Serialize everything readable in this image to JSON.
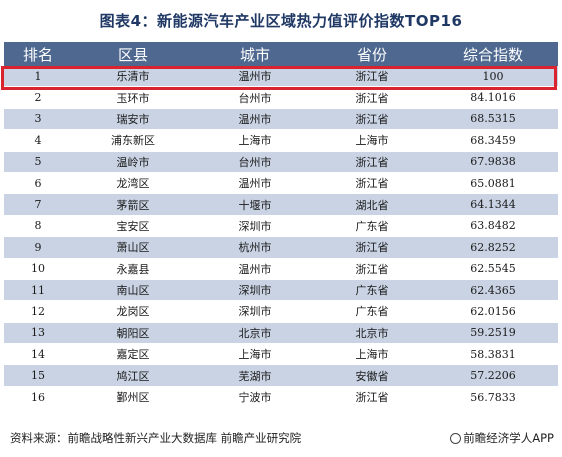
{
  "title": "图表4：新能源汽车产业区域热力值评价指数TOP16",
  "columns": [
    "排名",
    "区县",
    "城市",
    "省份",
    "综合指数"
  ],
  "rows": [
    [
      "1",
      "乐清市",
      "温州市",
      "浙江省",
      "100"
    ],
    [
      "2",
      "玉环市",
      "台州市",
      "浙江省",
      "84.1016"
    ],
    [
      "3",
      "瑞安市",
      "温州市",
      "浙江省",
      "68.5315"
    ],
    [
      "4",
      "浦东新区",
      "上海市",
      "上海市",
      "68.3459"
    ],
    [
      "5",
      "温岭市",
      "台州市",
      "浙江省",
      "67.9838"
    ],
    [
      "6",
      "龙湾区",
      "温州市",
      "浙江省",
      "65.0881"
    ],
    [
      "7",
      "茅箭区",
      "十堰市",
      "湖北省",
      "64.1344"
    ],
    [
      "8",
      "宝安区",
      "深圳市",
      "广东省",
      "63.8482"
    ],
    [
      "9",
      "萧山区",
      "杭州市",
      "浙江省",
      "62.8252"
    ],
    [
      "10",
      "永嘉县",
      "温州市",
      "浙江省",
      "62.5545"
    ],
    [
      "11",
      "南山区",
      "深圳市",
      "广东省",
      "62.4365"
    ],
    [
      "12",
      "龙岗区",
      "深圳市",
      "广东省",
      "62.0156"
    ],
    [
      "13",
      "朝阳区",
      "北京市",
      "北京市",
      "59.2519"
    ],
    [
      "14",
      "嘉定区",
      "上海市",
      "上海市",
      "58.3831"
    ],
    [
      "15",
      "鸠江区",
      "芜湖市",
      "安徽省",
      "57.2206"
    ],
    [
      "16",
      "鄞州区",
      "宁波市",
      "浙江省",
      "56.7833"
    ]
  ],
  "footer": {
    "source": "资料来源：前瞻战略性新兴产业大数据库 前瞻产业研究院",
    "brand": "前瞻经济学人APP"
  },
  "colors": {
    "header_bg": "#4e6890",
    "stripe": "#c9d3e3",
    "highlight": "#d9232e",
    "title": "#1f3864"
  }
}
